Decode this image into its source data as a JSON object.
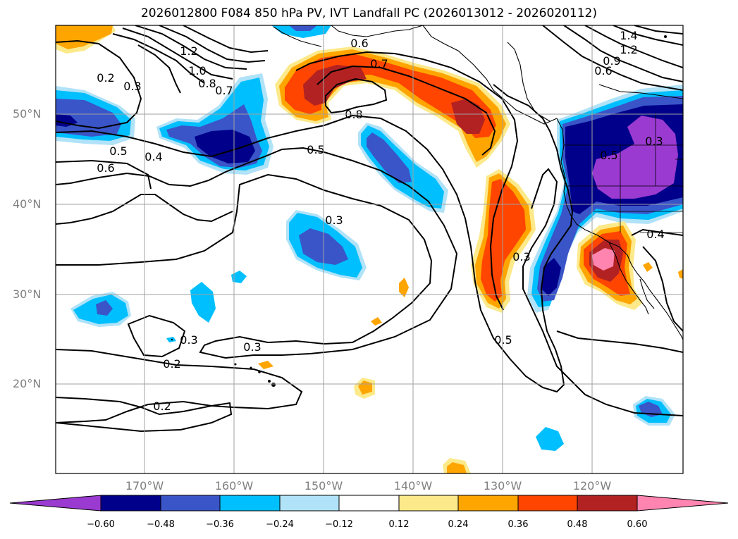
{
  "title": "2026012800 F084 850 hPa PV, IVT Landfall PC (2026013012 - 2026020112)",
  "colors": {
    "neg_060": "#9a3ad0",
    "neg_048": "#00008b",
    "neg_036": "#3a55c8",
    "neg_024": "#00bfff",
    "neg_012": "#b0e2f8",
    "zero": "#ffffff",
    "pos_012": "#fce98a",
    "pos_024": "#ffa500",
    "pos_036": "#ff4500",
    "pos_048": "#b22222",
    "pos_060": "#ff85b0"
  },
  "lat_ticks": [
    "50°N",
    "40°N",
    "30°N",
    "20°N"
  ],
  "lon_ticks": [
    "170°W",
    "160°W",
    "150°W",
    "140°W",
    "130°W",
    "120°W"
  ],
  "colorbar": {
    "ticks": [
      "−0.60",
      "−0.48",
      "−0.36",
      "−0.24",
      "−0.12",
      "0.12",
      "0.24",
      "0.36",
      "0.48",
      "0.60"
    ]
  },
  "contour_labels": [
    "0.6",
    "0.7",
    "0.8",
    "0.5",
    "0.3",
    "0.4",
    "0.2",
    "1.2",
    "1.0",
    "1.4",
    "0.9"
  ]
}
